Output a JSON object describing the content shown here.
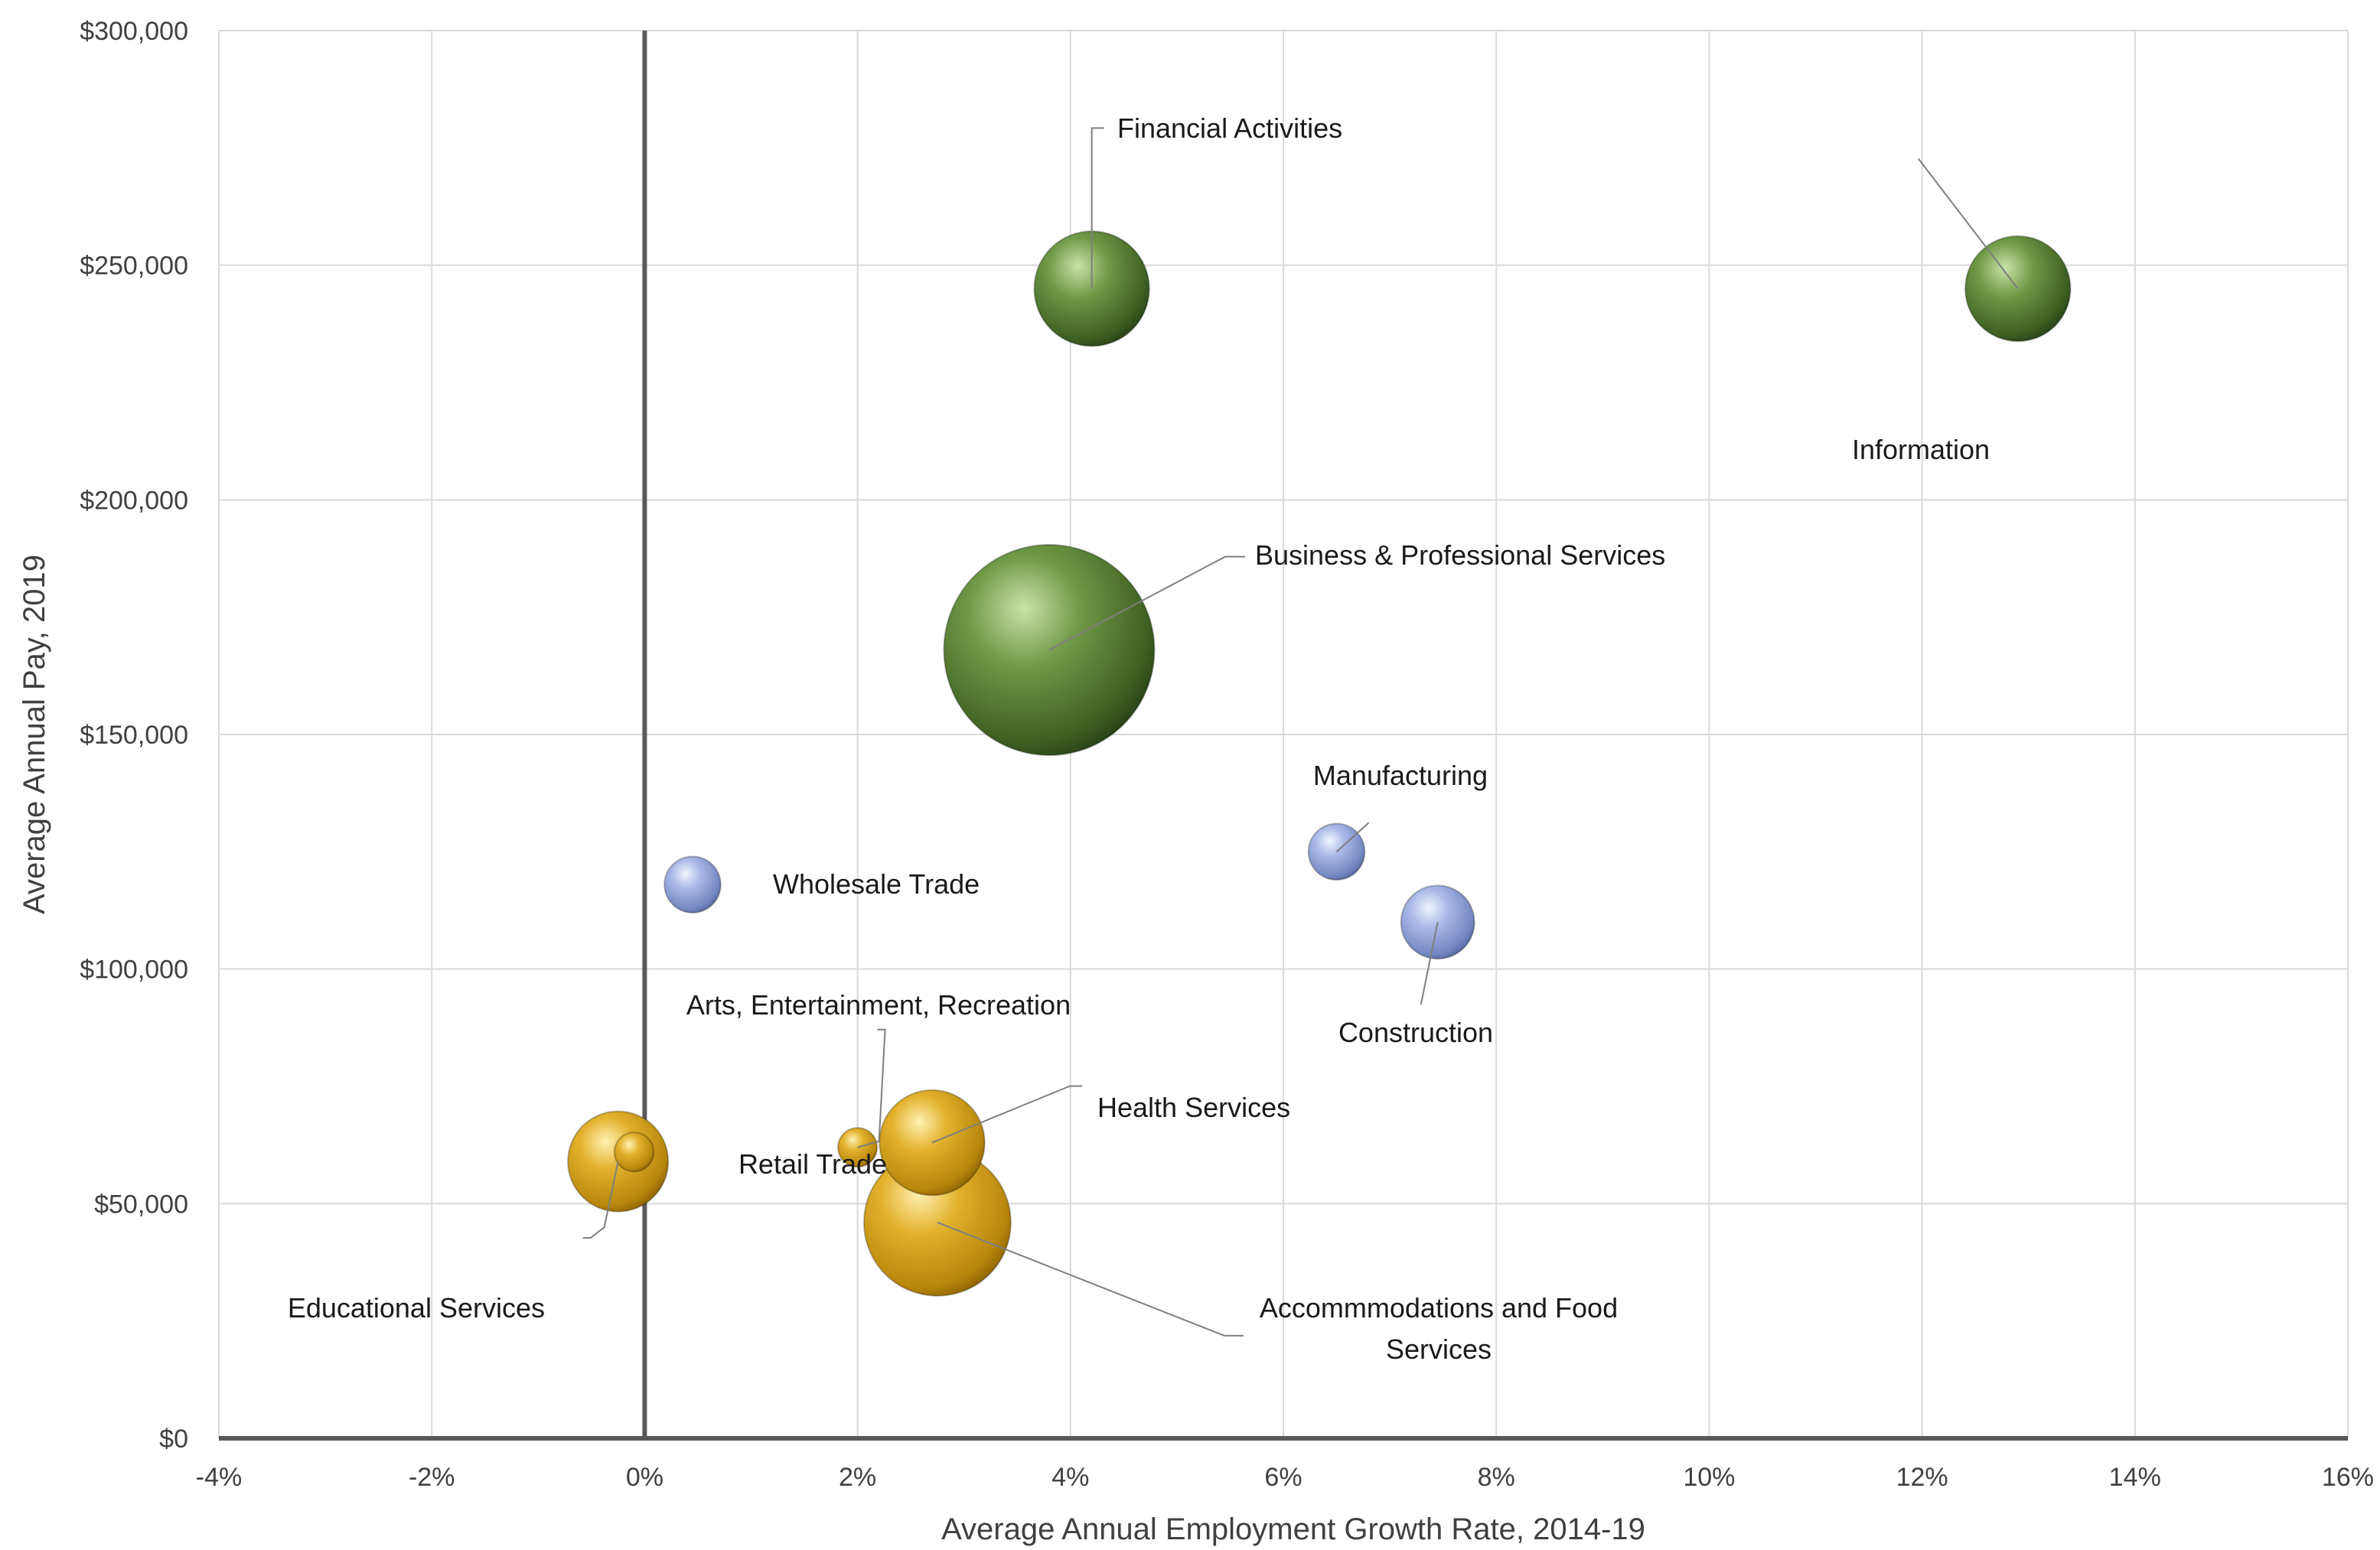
{
  "chart_data": {
    "type": "bubble",
    "xlabel": "Average Annual Employment Growth Rate, 2014-19",
    "ylabel": "Average Annual Pay, 2019",
    "xlim": [
      -0.04,
      0.16
    ],
    "ylim": [
      0,
      300000
    ],
    "x_ticks": [
      {
        "value": -0.04,
        "label": "-4%"
      },
      {
        "value": -0.02,
        "label": "-2%"
      },
      {
        "value": 0.0,
        "label": "0%"
      },
      {
        "value": 0.02,
        "label": "2%"
      },
      {
        "value": 0.04,
        "label": "4%"
      },
      {
        "value": 0.06,
        "label": "6%"
      },
      {
        "value": 0.08,
        "label": "8%"
      },
      {
        "value": 0.1,
        "label": "10%"
      },
      {
        "value": 0.12,
        "label": "12%"
      },
      {
        "value": 0.14,
        "label": "14%"
      },
      {
        "value": 0.16,
        "label": "16%"
      }
    ],
    "y_ticks": [
      {
        "value": 0,
        "label": "$0"
      },
      {
        "value": 50000,
        "label": "$50,000"
      },
      {
        "value": 100000,
        "label": "$100,000"
      },
      {
        "value": 150000,
        "label": "$150,000"
      },
      {
        "value": 200000,
        "label": "$200,000"
      },
      {
        "value": 250000,
        "label": "$250,000"
      },
      {
        "value": 300000,
        "label": "$300,000"
      }
    ],
    "grid": true,
    "colors": {
      "green": "#5e8a3a",
      "blue": "#9fb0e0",
      "gold": "#d9a21f"
    },
    "points": [
      {
        "name": "Financial Activities",
        "x": 0.042,
        "y": 245000,
        "size": 0.47,
        "color": "green"
      },
      {
        "name": "Information",
        "x": 0.129,
        "y": 245000,
        "size": 0.43,
        "color": "green"
      },
      {
        "name": "Business & Professional Services",
        "x": 0.038,
        "y": 168000,
        "size": 0.86,
        "color": "green"
      },
      {
        "name": "Manufacturing",
        "x": 0.065,
        "y": 125000,
        "size": 0.23,
        "color": "blue"
      },
      {
        "name": "Wholesale Trade",
        "x": 0.0045,
        "y": 118000,
        "size": 0.23,
        "color": "blue"
      },
      {
        "name": "Construction",
        "x": 0.0745,
        "y": 110000,
        "size": 0.3,
        "color": "blue"
      },
      {
        "name": "Educational Services",
        "x": -0.0025,
        "y": 59000,
        "size": 0.41,
        "color": "gold"
      },
      {
        "name": "Retail Trade",
        "x": -0.001,
        "y": 61000,
        "size": 0.16,
        "color": "gold"
      },
      {
        "name": "Health Services",
        "x": 0.027,
        "y": 63000,
        "size": 0.43,
        "color": "gold"
      },
      {
        "name": "Arts, Entertainment, Recreation",
        "x": 0.02,
        "y": 62000,
        "size": 0.16,
        "color": "gold"
      },
      {
        "name": "Accommmodations and Food Services",
        "x": 0.0275,
        "y": 46000,
        "size": 0.6,
        "color": "gold"
      }
    ]
  }
}
